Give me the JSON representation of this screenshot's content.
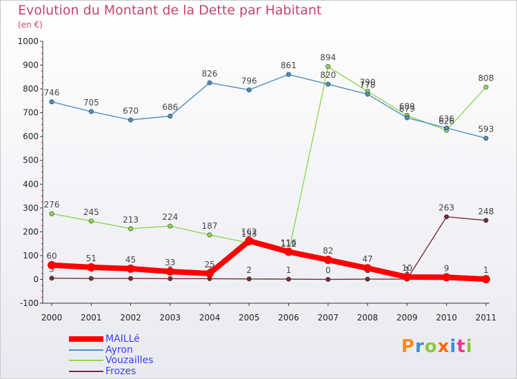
{
  "title": "Evolution du Montant de la Dette par Habitant",
  "unit": "(en €)",
  "brand": {
    "name": "Proxiti",
    "colors": [
      "#ff8a1e",
      "#3b8fd4",
      "#8ec63f",
      "#ff6a00",
      "#3b8fd4",
      "#e83a8c",
      "#8ec63f"
    ]
  },
  "chart_data": {
    "type": "line",
    "title": "Evolution du Montant de la Dette par Habitant",
    "ylabel": "(en €)",
    "xlabel": "",
    "x": [
      "2000",
      "2001",
      "2002",
      "2003",
      "2004",
      "2005",
      "2006",
      "2007",
      "2008",
      "2009",
      "2010",
      "2011"
    ],
    "ylim": [
      -100,
      1000
    ],
    "yticks": [
      -100,
      0,
      100,
      200,
      300,
      400,
      500,
      600,
      700,
      800,
      900,
      1000
    ],
    "grid": false,
    "legend_position": "bottom-left",
    "series": [
      {
        "name": "Frozes",
        "color": "#7a2a35",
        "values": [
          5,
          4,
          4,
          3,
          3,
          2,
          1,
          0,
          1,
          1,
          263,
          248
        ],
        "labels": [
          "5",
          "4",
          "4",
          "3",
          "3",
          "2",
          "1",
          "0",
          "1",
          "1",
          "263",
          "248"
        ]
      },
      {
        "name": "Vouzailles",
        "color": "#8fd64f",
        "values": [
          276,
          245,
          213,
          224,
          187,
          153,
          112,
          894,
          790,
          689,
          626,
          808
        ],
        "labels": [
          "276",
          "245",
          "213",
          "224",
          "187",
          "153",
          "112",
          "894",
          "790",
          "689",
          "626",
          "808"
        ]
      },
      {
        "name": "Ayron",
        "color": "#4a8ec4",
        "values": [
          746,
          705,
          670,
          686,
          826,
          796,
          861,
          820,
          778,
          679,
          636,
          593
        ],
        "labels": [
          "746",
          "705",
          "670",
          "686",
          "826",
          "796",
          "861",
          "820",
          "778",
          "679",
          "636",
          "593"
        ]
      },
      {
        "name": "MAILLé",
        "color": "#ff0000",
        "values": [
          60,
          51,
          45,
          33,
          25,
          162,
          116,
          82,
          47,
          10,
          9,
          1
        ],
        "labels": [
          "60",
          "51",
          "45",
          "33",
          "25",
          "162",
          "116",
          "82",
          "47",
          "10",
          "9",
          "1"
        ]
      }
    ]
  }
}
